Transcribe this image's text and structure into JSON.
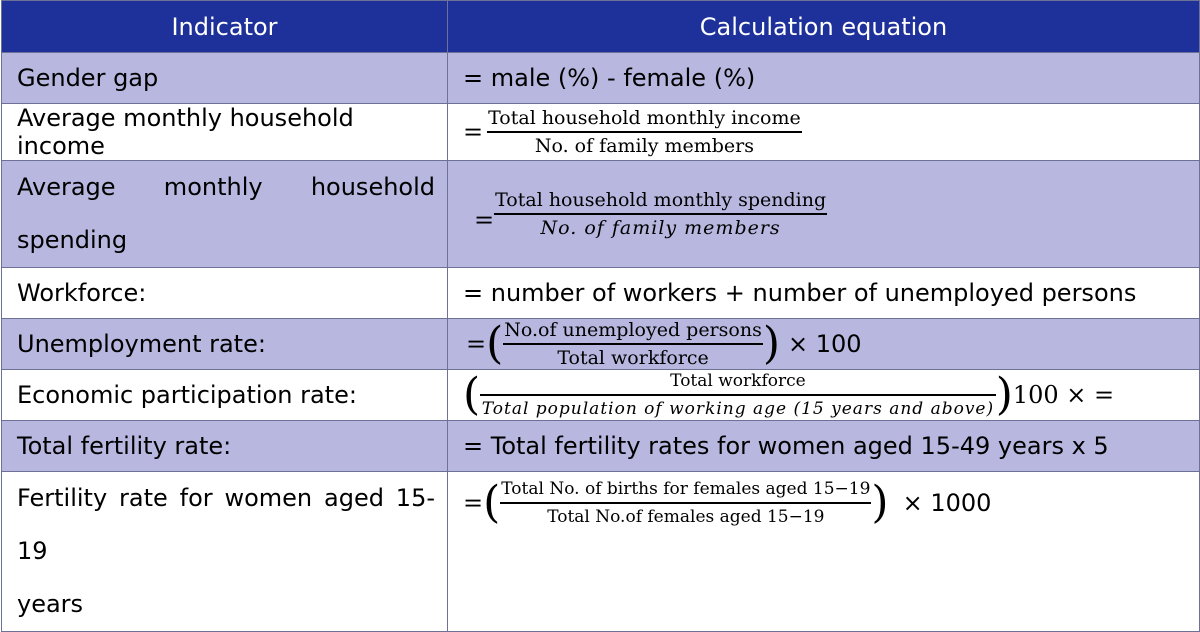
{
  "header": {
    "indicator": "Indicator",
    "equation": "Calculation equation"
  },
  "rows": [
    {
      "indicator": "Gender gap",
      "equation": "= male (%) - female (%)"
    },
    {
      "indicator": "Average monthly household income",
      "eq_prefix": "=",
      "numerator": "Total household monthly income",
      "denominator": "No. of family members"
    },
    {
      "indicator_line1": "Average monthly household",
      "indicator_line2": "spending",
      "eq_prefix": "=",
      "numerator": "Total household monthly spending",
      "denominator": "No. of family members"
    },
    {
      "indicator": "Workforce:",
      "equation": "= number of workers + number of unemployed persons"
    },
    {
      "indicator": "Unemployment rate:",
      "eq_prefix": "=",
      "numerator": "No.of unemployed persons",
      "denominator": "Total workforce",
      "suffix": "× 100"
    },
    {
      "indicator": "Economic participation rate:",
      "numerator": "Total workforce",
      "denominator": "Total population of working age (15 years and above)",
      "suffix": "100 × ="
    },
    {
      "indicator": "Total fertility rate:",
      "equation": "= Total fertility rates for women aged 15-49 years x 5"
    },
    {
      "indicator_line1": "Fertility rate for women aged 15-19",
      "indicator_line2": "years",
      "eq_prefix": "=",
      "numerator": "Total No. of births for females aged 15−19",
      "denominator": "Total No.of females aged 15−19",
      "suffix": "× 1000"
    }
  ]
}
